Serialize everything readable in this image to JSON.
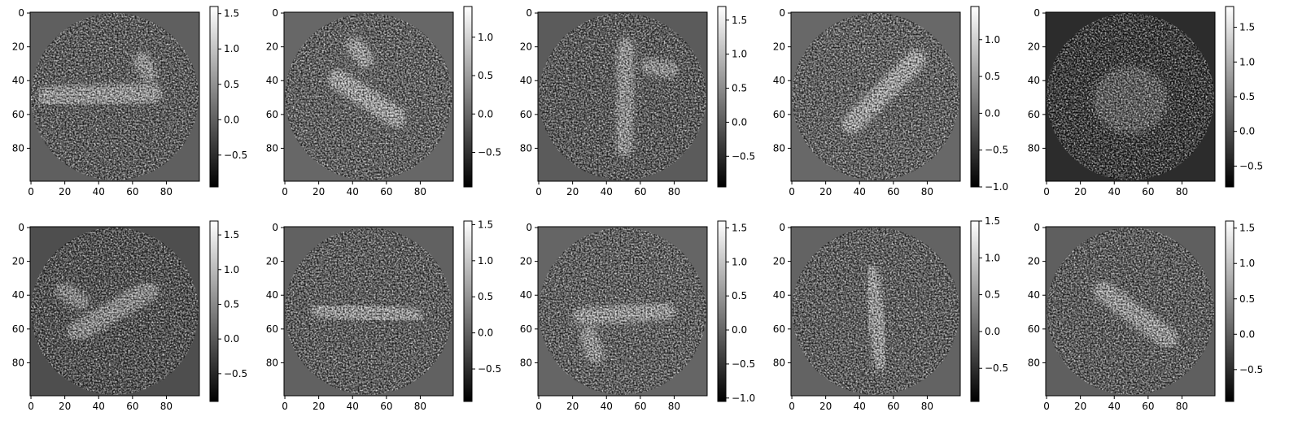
{
  "chart_data": [
    {
      "type": "heatmap",
      "shape": [
        100,
        100
      ],
      "colormap": "gray",
      "mask": "circle",
      "background": 0.0,
      "xticks": [
        0,
        20,
        40,
        60,
        80
      ],
      "yticks": [
        0,
        20,
        40,
        60,
        80
      ],
      "colorbar": {
        "vmin": -0.95,
        "vmax": 1.6,
        "ticks": [
          -0.5,
          0.0,
          0.5,
          1.0,
          1.5
        ],
        "tick_labels": [
          "−0.5",
          "0.0",
          "0.5",
          "1.0",
          "1.5"
        ]
      },
      "blobs": [
        {
          "type": "line",
          "x1": 10,
          "y1": 50,
          "x2": 72,
          "y2": 48,
          "w": 6,
          "a": 0.85
        },
        {
          "type": "line",
          "x1": 66,
          "y1": 28,
          "x2": 70,
          "y2": 36,
          "w": 5,
          "a": 0.8
        }
      ]
    },
    {
      "type": "heatmap",
      "shape": [
        100,
        100
      ],
      "colormap": "gray",
      "mask": "circle",
      "background": 0.0,
      "xticks": [
        0,
        20,
        40,
        60,
        80
      ],
      "yticks": [
        0,
        20,
        40,
        60,
        80
      ],
      "colorbar": {
        "vmin": -0.95,
        "vmax": 1.4,
        "ticks": [
          -0.5,
          0.0,
          0.5,
          1.0
        ],
        "tick_labels": [
          "−0.5",
          "0.0",
          "0.5",
          "1.0"
        ]
      },
      "blobs": [
        {
          "type": "line",
          "x1": 32,
          "y1": 40,
          "x2": 66,
          "y2": 62,
          "w": 6,
          "a": 0.85
        },
        {
          "type": "line",
          "x1": 42,
          "y1": 20,
          "x2": 48,
          "y2": 28,
          "w": 5,
          "a": 0.8
        }
      ]
    },
    {
      "type": "heatmap",
      "shape": [
        100,
        100
      ],
      "colormap": "gray",
      "mask": "circle",
      "background": 0.0,
      "xticks": [
        0,
        20,
        40,
        60,
        80
      ],
      "yticks": [
        0,
        20,
        40,
        60,
        80
      ],
      "colorbar": {
        "vmin": -0.95,
        "vmax": 1.7,
        "ticks": [
          -0.5,
          0.0,
          0.5,
          1.0,
          1.5
        ],
        "tick_labels": [
          "−0.5",
          "0.0",
          "0.5",
          "1.0",
          "1.5"
        ]
      },
      "blobs": [
        {
          "type": "line",
          "x1": 52,
          "y1": 20,
          "x2": 51,
          "y2": 80,
          "w": 5,
          "a": 0.85
        },
        {
          "type": "line",
          "x1": 66,
          "y1": 32,
          "x2": 78,
          "y2": 34,
          "w": 5,
          "a": 0.8
        }
      ]
    },
    {
      "type": "heatmap",
      "shape": [
        100,
        100
      ],
      "colormap": "gray",
      "mask": "circle",
      "background": 0.0,
      "xticks": [
        0,
        20,
        40,
        60,
        80
      ],
      "yticks": [
        0,
        20,
        40,
        60,
        80
      ],
      "colorbar": {
        "vmin": -1.0,
        "vmax": 1.45,
        "ticks": [
          -1.0,
          -0.5,
          0.0,
          0.5,
          1.0
        ],
        "tick_labels": [
          "−1.0",
          "−0.5",
          "0.0",
          "0.5",
          "1.0"
        ]
      },
      "blobs": [
        {
          "type": "line",
          "x1": 36,
          "y1": 66,
          "x2": 74,
          "y2": 28,
          "w": 6,
          "a": 0.85
        }
      ]
    },
    {
      "type": "heatmap",
      "shape": [
        100,
        100
      ],
      "colormap": "gray",
      "mask": "circle",
      "background": -0.35,
      "xticks": [
        0,
        20,
        40,
        60,
        80
      ],
      "yticks": [
        0,
        20,
        40,
        60,
        80
      ],
      "colorbar": {
        "vmin": -0.8,
        "vmax": 1.8,
        "ticks": [
          -0.5,
          0.0,
          0.5,
          1.0,
          1.5
        ],
        "tick_labels": [
          "−0.5",
          "0.0",
          "0.5",
          "1.0",
          "1.5"
        ]
      },
      "blobs": [
        {
          "type": "gauss",
          "cx": 50,
          "cy": 52,
          "sx": 22,
          "sy": 20,
          "a": 0.55
        }
      ]
    },
    {
      "type": "heatmap",
      "shape": [
        100,
        100
      ],
      "colormap": "gray",
      "mask": "circle",
      "background": -0.1,
      "xticks": [
        0,
        20,
        40,
        60,
        80
      ],
      "yticks": [
        0,
        20,
        40,
        60,
        80
      ],
      "colorbar": {
        "vmin": -0.9,
        "vmax": 1.7,
        "ticks": [
          -0.5,
          0.0,
          0.5,
          1.0,
          1.5
        ],
        "tick_labels": [
          "−0.5",
          "0.0",
          "0.5",
          "1.0",
          "1.5"
        ]
      },
      "blobs": [
        {
          "type": "line",
          "x1": 28,
          "y1": 62,
          "x2": 70,
          "y2": 38,
          "w": 6,
          "a": 0.85
        },
        {
          "type": "line",
          "x1": 20,
          "y1": 38,
          "x2": 30,
          "y2": 44,
          "w": 5,
          "a": 0.8
        }
      ]
    },
    {
      "type": "heatmap",
      "shape": [
        100,
        100
      ],
      "colormap": "gray",
      "mask": "circle",
      "background": 0.0,
      "xticks": [
        0,
        20,
        40,
        60,
        80
      ],
      "yticks": [
        0,
        20,
        40,
        60,
        80
      ],
      "colorbar": {
        "vmin": -0.95,
        "vmax": 1.55,
        "ticks": [
          -0.5,
          0.0,
          0.5,
          1.0,
          1.5
        ],
        "tick_labels": [
          "−0.5",
          "0.0",
          "0.5",
          "1.0",
          "1.5"
        ]
      },
      "blobs": [
        {
          "type": "line",
          "x1": 22,
          "y1": 48,
          "x2": 76,
          "y2": 54,
          "w": 6,
          "a": 0.8
        }
      ]
    },
    {
      "type": "heatmap",
      "shape": [
        100,
        100
      ],
      "colormap": "gray",
      "mask": "circle",
      "background": 0.0,
      "xticks": [
        0,
        20,
        40,
        60,
        80
      ],
      "yticks": [
        0,
        20,
        40,
        60,
        80
      ],
      "colorbar": {
        "vmin": -1.05,
        "vmax": 1.6,
        "ticks": [
          -1.0,
          -0.5,
          0.0,
          0.5,
          1.0,
          1.5
        ],
        "tick_labels": [
          "−1.0",
          "−0.5",
          "0.0",
          "0.5",
          "1.0",
          "1.5"
        ]
      },
      "blobs": [
        {
          "type": "line",
          "x1": 26,
          "y1": 53,
          "x2": 76,
          "y2": 50,
          "w": 5,
          "a": 0.85
        },
        {
          "type": "line",
          "x1": 30,
          "y1": 64,
          "x2": 34,
          "y2": 76,
          "w": 5,
          "a": 0.8
        }
      ]
    },
    {
      "type": "heatmap",
      "shape": [
        100,
        100
      ],
      "colormap": "gray",
      "mask": "circle",
      "background": 0.0,
      "xticks": [
        0,
        20,
        40,
        60,
        80
      ],
      "yticks": [
        0,
        20,
        40,
        60,
        80
      ],
      "colorbar": {
        "vmin": -0.95,
        "vmax": 1.5,
        "ticks": [
          -0.5,
          0.0,
          0.5,
          1.0,
          1.5
        ],
        "tick_labels": [
          "−0.5",
          "0.0",
          "0.5",
          "1.0",
          "1.5"
        ]
      },
      "blobs": [
        {
          "type": "line",
          "x1": 47,
          "y1": 28,
          "x2": 54,
          "y2": 80,
          "w": 5,
          "a": 0.85
        }
      ]
    },
    {
      "type": "heatmap",
      "shape": [
        100,
        100
      ],
      "colormap": "gray",
      "mask": "circle",
      "background": 0.0,
      "xticks": [
        0,
        20,
        40,
        60,
        80
      ],
      "yticks": [
        0,
        20,
        40,
        60,
        80
      ],
      "colorbar": {
        "vmin": -0.95,
        "vmax": 1.6,
        "ticks": [
          -0.5,
          0.0,
          0.5,
          1.0,
          1.5
        ],
        "tick_labels": [
          "−0.5",
          "0.0",
          "0.5",
          "1.0",
          "1.5"
        ]
      },
      "blobs": [
        {
          "type": "line",
          "x1": 34,
          "y1": 38,
          "x2": 72,
          "y2": 66,
          "w": 6,
          "a": 0.85
        }
      ]
    }
  ]
}
